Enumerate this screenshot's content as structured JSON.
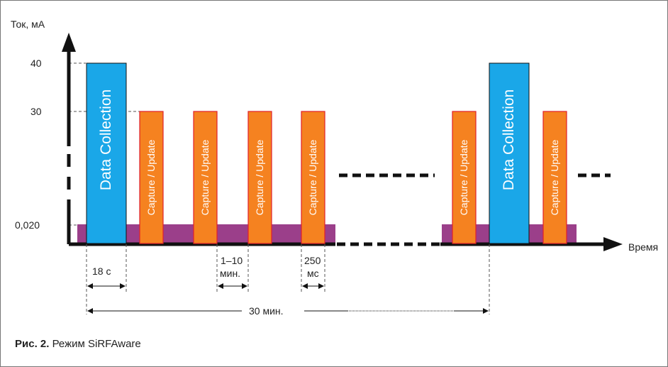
{
  "y_axis_label": "Ток, мА",
  "x_axis_label": "Время",
  "y_ticks": [
    "40",
    "30",
    "0,020"
  ],
  "blocks": {
    "data_collection": "Data Collection",
    "capture_update": "Capture / Update"
  },
  "annotations": {
    "dc_duration": "18 с",
    "interval_line1": "1–10",
    "interval_line2": "мин.",
    "capture_line1": "250",
    "capture_line2": "мс",
    "period": "30 мин."
  },
  "caption": {
    "number": "Рис. 2.",
    "text": " Режим SiRFAware"
  },
  "colors": {
    "data_collection": "#1aa7e8",
    "capture_update": "#f58220",
    "capture_border": "#e0202a",
    "baseline": "#9b3f8a",
    "axis": "#111111"
  }
}
